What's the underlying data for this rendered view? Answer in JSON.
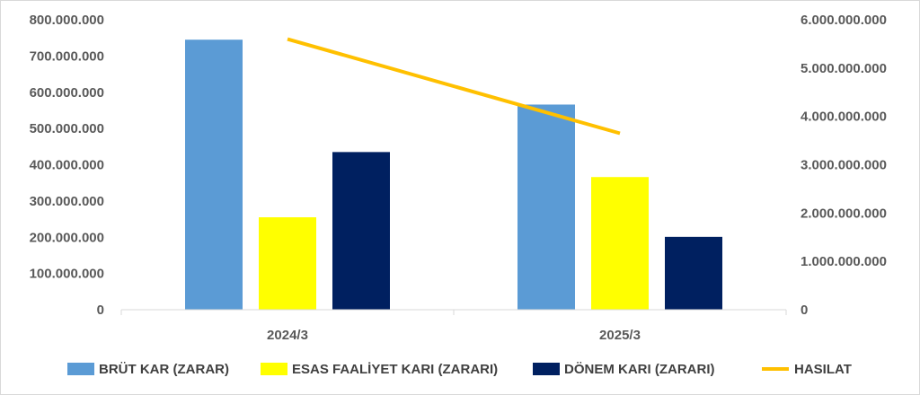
{
  "chart_data": {
    "type": "bar",
    "categories": [
      "2024/3",
      "2025/3"
    ],
    "series": [
      {
        "name": "BRÜT KAR (ZARAR)",
        "axis": "left",
        "kind": "bar",
        "color": "#5b9bd5",
        "values": [
          745000000,
          566000000
        ]
      },
      {
        "name": "ESAS FAALİYET KARI (ZARARI)",
        "axis": "left",
        "kind": "bar",
        "color": "#ffff00",
        "values": [
          255000000,
          366000000
        ]
      },
      {
        "name": "DÖNEM KARI (ZARARI)",
        "axis": "left",
        "kind": "bar",
        "color": "#002060",
        "values": [
          435000000,
          201000000
        ]
      },
      {
        "name": "HASILAT",
        "axis": "right",
        "kind": "line",
        "color": "#ffc000",
        "values": [
          5600000000,
          3650000000
        ]
      }
    ],
    "y_left": {
      "ylim": [
        0,
        800000000
      ],
      "ticks": [
        "0",
        "100.000.000",
        "200.000.000",
        "300.000.000",
        "400.000.000",
        "500.000.000",
        "600.000.000",
        "700.000.000",
        "800.000.000"
      ]
    },
    "y_right": {
      "ylim": [
        0,
        6000000000
      ],
      "ticks": [
        "0",
        "1.000.000.000",
        "2.000.000.000",
        "3.000.000.000",
        "4.000.000.000",
        "5.000.000.000",
        "6.000.000.000"
      ]
    },
    "grid": false,
    "legend": "bottom",
    "title": "",
    "xlabel": "",
    "ylabel": ""
  }
}
